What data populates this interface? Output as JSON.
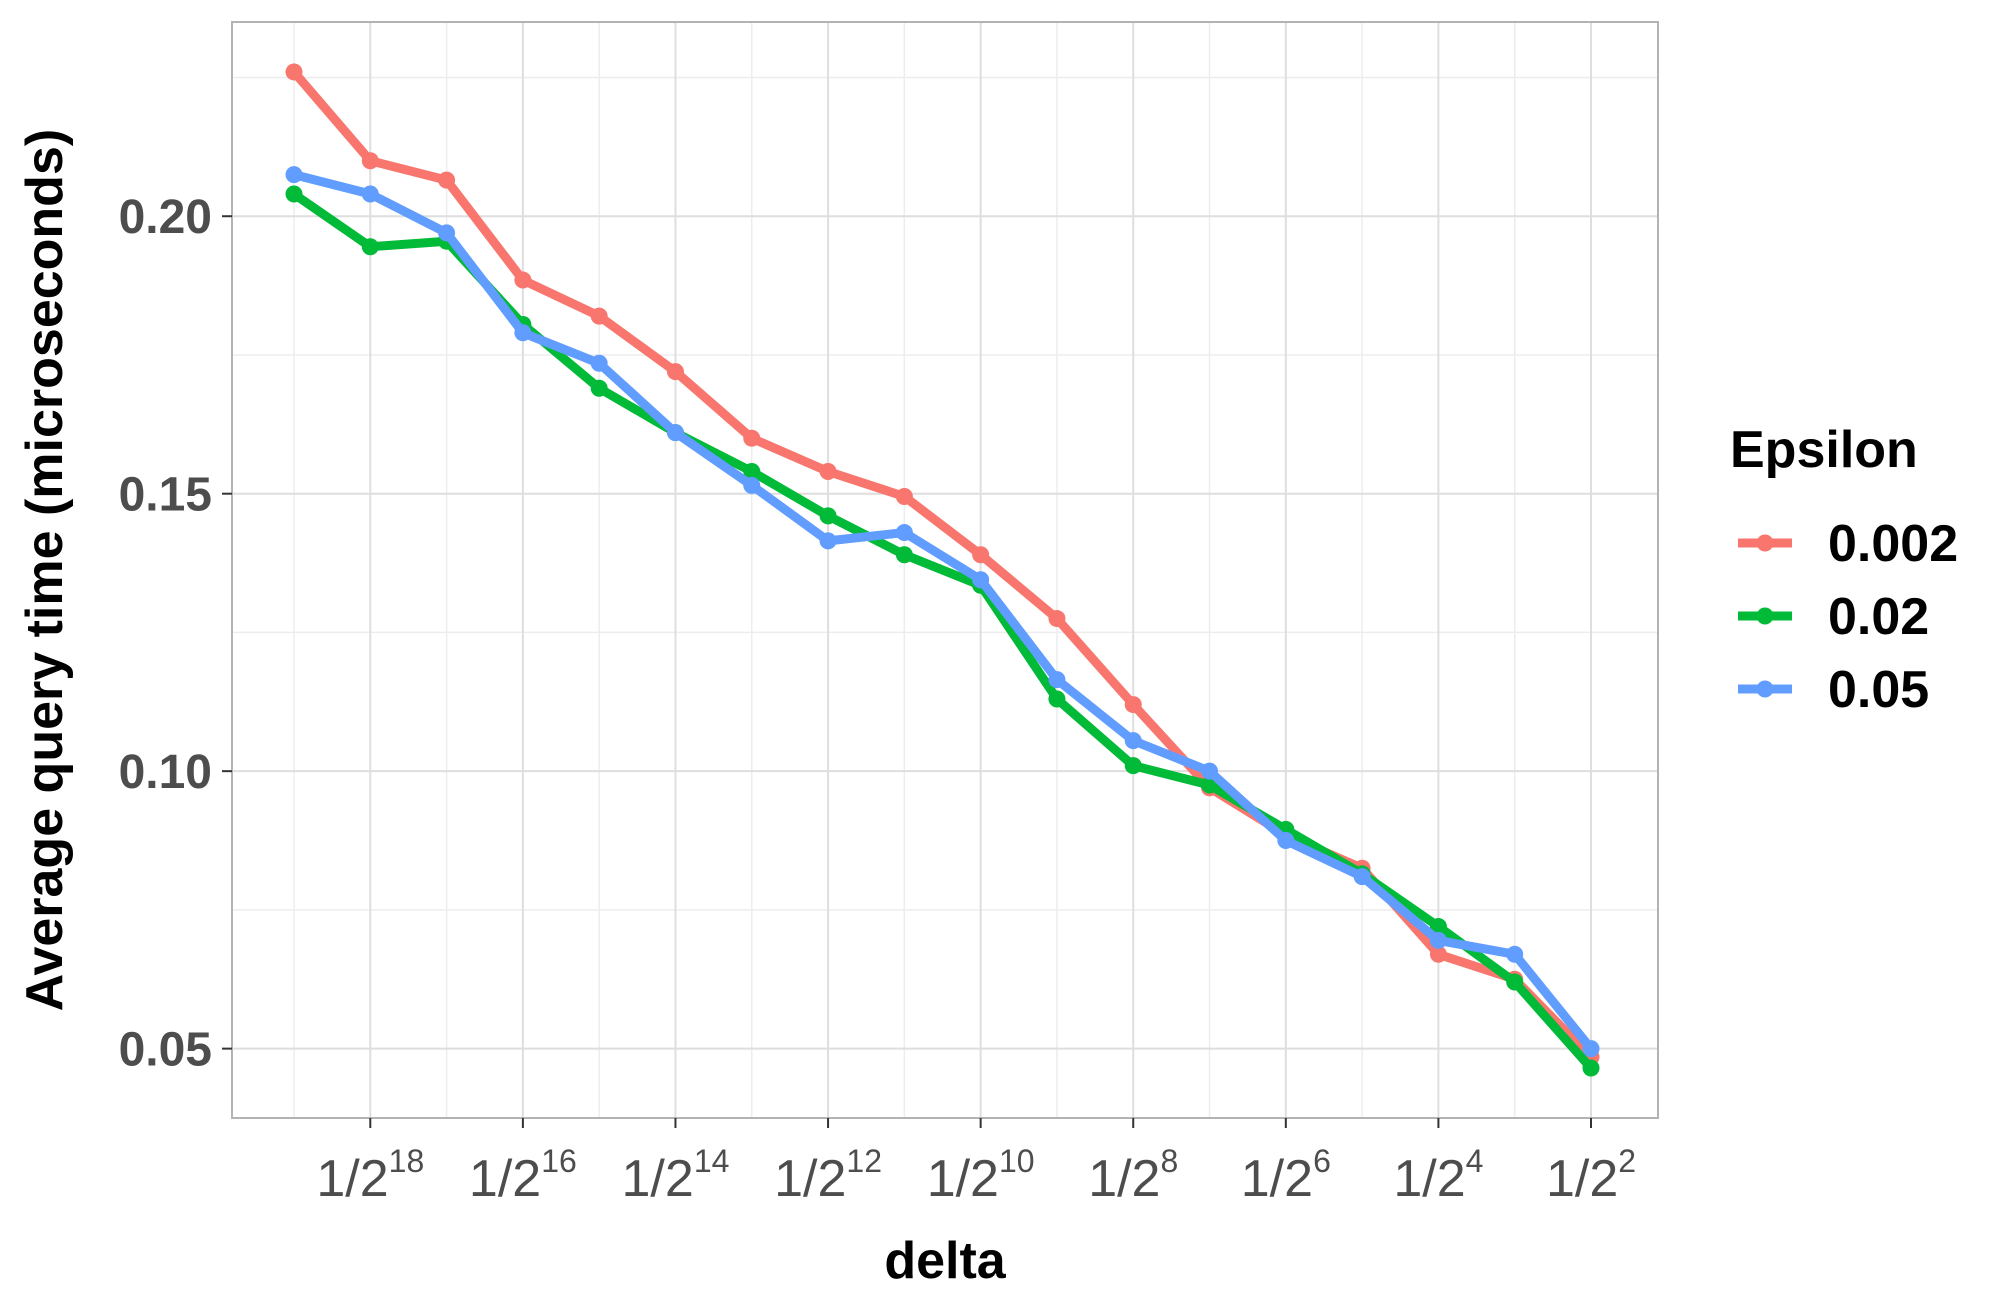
{
  "chart_data": {
    "type": "line",
    "xlabel": "delta",
    "ylabel": "Average query time (microseconds)",
    "x": [
      "1/2^19",
      "1/2^18",
      "1/2^17",
      "1/2^16",
      "1/2^15",
      "1/2^14",
      "1/2^13",
      "1/2^12",
      "1/2^11",
      "1/2^10",
      "1/2^9",
      "1/2^8",
      "1/2^7",
      "1/2^6",
      "1/2^5",
      "1/2^4",
      "1/2^3",
      "1/2^2"
    ],
    "x_ticks": [
      {
        "index": 1,
        "base": "1/2",
        "exp": "18"
      },
      {
        "index": 3,
        "base": "1/2",
        "exp": "16"
      },
      {
        "index": 5,
        "base": "1/2",
        "exp": "14"
      },
      {
        "index": 7,
        "base": "1/2",
        "exp": "12"
      },
      {
        "index": 9,
        "base": "1/2",
        "exp": "10"
      },
      {
        "index": 11,
        "base": "1/2",
        "exp": "8"
      },
      {
        "index": 13,
        "base": "1/2",
        "exp": "6"
      },
      {
        "index": 15,
        "base": "1/2",
        "exp": "4"
      },
      {
        "index": 17,
        "base": "1/2",
        "exp": "2"
      }
    ],
    "y_ticks": [
      0.05,
      0.1,
      0.15,
      0.2
    ],
    "y_tick_labels": [
      "0.05",
      "0.10",
      "0.15",
      "0.20"
    ],
    "ylim": [
      0.0375,
      0.235
    ],
    "grid": true,
    "legend": {
      "title": "Epsilon",
      "position": "right"
    },
    "series": [
      {
        "name": "0.002",
        "color": "#F8766D",
        "values": [
          0.226,
          0.21,
          0.2065,
          0.1885,
          0.182,
          0.172,
          0.16,
          0.154,
          0.1495,
          0.139,
          0.1275,
          0.112,
          0.097,
          0.0885,
          0.0825,
          0.067,
          0.0625,
          0.0485
        ]
      },
      {
        "name": "0.02",
        "color": "#00BA38",
        "values": [
          0.204,
          0.1945,
          0.1955,
          0.1805,
          0.169,
          0.161,
          0.154,
          0.146,
          0.139,
          0.1335,
          0.113,
          0.101,
          0.0975,
          0.0895,
          0.0815,
          0.072,
          0.062,
          0.0465
        ]
      },
      {
        "name": "0.05",
        "color": "#619CFF",
        "values": [
          0.2075,
          0.204,
          0.197,
          0.179,
          0.1735,
          0.161,
          0.1515,
          0.1415,
          0.143,
          0.1345,
          0.1165,
          0.1055,
          0.1,
          0.0875,
          0.081,
          0.0695,
          0.067,
          0.05
        ]
      }
    ]
  }
}
